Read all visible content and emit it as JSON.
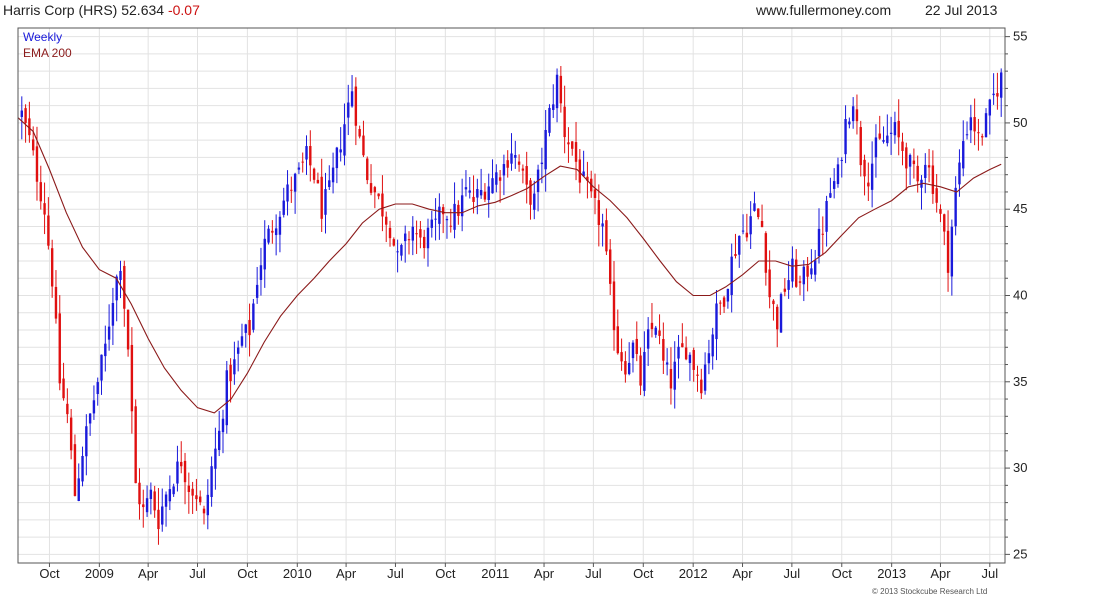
{
  "header": {
    "title": "Harris Corp (HRS) 52.634",
    "change": "-0.07",
    "site": "www.fullermoney.com",
    "date": "22 Jul 2013"
  },
  "footer": {
    "copyright": "© 2013 Stockcube Research Ltd"
  },
  "colors": {
    "up": "#1a1adb",
    "down": "#e01010",
    "ema": "#8b1a1a",
    "grid": "#e2e2e2"
  },
  "chart_data": {
    "type": "candlestick",
    "legend": {
      "placement": "top-left",
      "entries": [
        "Weekly",
        "EMA 200"
      ]
    },
    "grid": true,
    "ylim": [
      24.5,
      55.5
    ],
    "y_ticks": [
      25,
      30,
      35,
      40,
      45,
      50,
      55
    ],
    "x_range": [
      "2008-08-04",
      "2013-07-29"
    ],
    "x_ticks": [
      {
        "date": "2008-10-01",
        "label": "Oct"
      },
      {
        "date": "2009-01-01",
        "label": "2009"
      },
      {
        "date": "2009-04-01",
        "label": "Apr"
      },
      {
        "date": "2009-07-01",
        "label": "Jul"
      },
      {
        "date": "2009-10-01",
        "label": "Oct"
      },
      {
        "date": "2010-01-01",
        "label": "2010"
      },
      {
        "date": "2010-04-01",
        "label": "Apr"
      },
      {
        "date": "2010-07-01",
        "label": "Jul"
      },
      {
        "date": "2010-10-01",
        "label": "Oct"
      },
      {
        "date": "2011-01-01",
        "label": "2011"
      },
      {
        "date": "2011-04-01",
        "label": "Apr"
      },
      {
        "date": "2011-07-01",
        "label": "Jul"
      },
      {
        "date": "2011-10-01",
        "label": "Oct"
      },
      {
        "date": "2012-01-01",
        "label": "2012"
      },
      {
        "date": "2012-04-01",
        "label": "Apr"
      },
      {
        "date": "2012-07-01",
        "label": "Jul"
      },
      {
        "date": "2012-10-01",
        "label": "Oct"
      },
      {
        "date": "2013-01-01",
        "label": "2013"
      },
      {
        "date": "2013-04-01",
        "label": "Apr"
      },
      {
        "date": "2013-07-01",
        "label": "Jul"
      }
    ],
    "series": [
      {
        "name": "Weekly",
        "kind": "weekly-ohlc",
        "close_path": [
          [
            "2008-08-11",
            50.5
          ],
          [
            "2008-08-25",
            49.0
          ],
          [
            "2008-09-08",
            47.0
          ],
          [
            "2008-09-22",
            45.0
          ],
          [
            "2008-10-06",
            41.0
          ],
          [
            "2008-10-20",
            35.0
          ],
          [
            "2008-11-03",
            33.0
          ],
          [
            "2008-11-17",
            28.5
          ],
          [
            "2008-12-01",
            31.0
          ],
          [
            "2008-12-15",
            33.0
          ],
          [
            "2008-12-29",
            35.0
          ],
          [
            "2009-01-12",
            37.0
          ],
          [
            "2009-01-26",
            40.0
          ],
          [
            "2009-02-09",
            42.0
          ],
          [
            "2009-02-23",
            37.0
          ],
          [
            "2009-03-09",
            29.0
          ],
          [
            "2009-03-23",
            27.5
          ],
          [
            "2009-04-06",
            28.5
          ],
          [
            "2009-04-20",
            27.0
          ],
          [
            "2009-05-04",
            28.5
          ],
          [
            "2009-05-18",
            29.5
          ],
          [
            "2009-06-01",
            30.5
          ],
          [
            "2009-06-15",
            29.0
          ],
          [
            "2009-06-29",
            28.5
          ],
          [
            "2009-07-13",
            27.0
          ],
          [
            "2009-07-27",
            30.0
          ],
          [
            "2009-08-10",
            32.0
          ],
          [
            "2009-08-24",
            35.0
          ],
          [
            "2009-09-07",
            36.0
          ],
          [
            "2009-09-21",
            37.5
          ],
          [
            "2009-10-05",
            38.0
          ],
          [
            "2009-10-19",
            41.0
          ],
          [
            "2009-11-02",
            43.0
          ],
          [
            "2009-11-16",
            44.0
          ],
          [
            "2009-11-30",
            45.0
          ],
          [
            "2009-12-14",
            46.0
          ],
          [
            "2010-01-04",
            47.0
          ],
          [
            "2010-01-18",
            48.0
          ],
          [
            "2010-02-01",
            47.0
          ],
          [
            "2010-02-15",
            45.0
          ],
          [
            "2010-03-01",
            46.0
          ],
          [
            "2010-03-15",
            48.0
          ],
          [
            "2010-03-29",
            50.0
          ],
          [
            "2010-04-12",
            52.0
          ],
          [
            "2010-04-26",
            49.0
          ],
          [
            "2010-05-10",
            47.0
          ],
          [
            "2010-05-24",
            46.0
          ],
          [
            "2010-06-07",
            45.0
          ],
          [
            "2010-06-21",
            44.0
          ],
          [
            "2010-07-05",
            42.0
          ],
          [
            "2010-07-19",
            43.0
          ],
          [
            "2010-08-02",
            44.0
          ],
          [
            "2010-08-16",
            43.0
          ],
          [
            "2010-08-30",
            43.5
          ],
          [
            "2010-09-13",
            44.0
          ],
          [
            "2010-09-27",
            45.0
          ],
          [
            "2010-10-11",
            44.5
          ],
          [
            "2010-10-25",
            45.0
          ],
          [
            "2010-11-08",
            46.0
          ],
          [
            "2010-11-22",
            45.5
          ],
          [
            "2010-12-06",
            46.0
          ],
          [
            "2010-12-20",
            46.5
          ],
          [
            "2011-01-03",
            47.0
          ],
          [
            "2011-01-17",
            47.5
          ],
          [
            "2011-01-31",
            48.5
          ],
          [
            "2011-02-14",
            47.5
          ],
          [
            "2011-02-28",
            46.0
          ],
          [
            "2011-03-14",
            45.5
          ],
          [
            "2011-03-28",
            48.0
          ],
          [
            "2011-04-11",
            50.5
          ],
          [
            "2011-04-25",
            52.5
          ],
          [
            "2011-05-09",
            49.5
          ],
          [
            "2011-05-23",
            48.5
          ],
          [
            "2011-06-06",
            47.0
          ],
          [
            "2011-06-20",
            46.0
          ],
          [
            "2011-07-04",
            45.0
          ],
          [
            "2011-07-18",
            44.0
          ],
          [
            "2011-08-01",
            40.0
          ],
          [
            "2011-08-15",
            37.0
          ],
          [
            "2011-08-29",
            36.0
          ],
          [
            "2011-09-12",
            37.0
          ],
          [
            "2011-09-26",
            35.0
          ],
          [
            "2011-10-10",
            37.5
          ],
          [
            "2011-10-24",
            38.5
          ],
          [
            "2011-11-07",
            36.0
          ],
          [
            "2011-11-21",
            35.0
          ],
          [
            "2011-12-05",
            36.5
          ],
          [
            "2011-12-19",
            37.0
          ],
          [
            "2012-01-02",
            36.0
          ],
          [
            "2012-01-16",
            35.0
          ],
          [
            "2012-01-30",
            37.0
          ],
          [
            "2012-02-13",
            39.0
          ],
          [
            "2012-02-27",
            40.0
          ],
          [
            "2012-03-12",
            42.0
          ],
          [
            "2012-03-26",
            43.5
          ],
          [
            "2012-04-09",
            44.0
          ],
          [
            "2012-04-23",
            45.0
          ],
          [
            "2012-05-07",
            44.0
          ],
          [
            "2012-05-21",
            40.0
          ],
          [
            "2012-06-04",
            38.5
          ],
          [
            "2012-06-18",
            40.5
          ],
          [
            "2012-07-02",
            41.5
          ],
          [
            "2012-07-16",
            40.5
          ],
          [
            "2012-07-30",
            41.5
          ],
          [
            "2012-08-13",
            42.5
          ],
          [
            "2012-08-27",
            44.0
          ],
          [
            "2012-09-10",
            46.0
          ],
          [
            "2012-09-24",
            47.0
          ],
          [
            "2012-10-08",
            50.0
          ],
          [
            "2012-10-22",
            51.5
          ],
          [
            "2012-11-05",
            48.0
          ],
          [
            "2012-11-19",
            47.0
          ],
          [
            "2012-12-03",
            48.5
          ],
          [
            "2012-12-17",
            49.0
          ],
          [
            "2013-01-07",
            49.5
          ],
          [
            "2013-01-21",
            48.5
          ],
          [
            "2013-02-04",
            47.5
          ],
          [
            "2013-02-18",
            46.5
          ],
          [
            "2013-03-04",
            48.0
          ],
          [
            "2013-03-18",
            46.5
          ],
          [
            "2013-04-01",
            44.5
          ],
          [
            "2013-04-15",
            42.0
          ],
          [
            "2013-04-29",
            46.0
          ],
          [
            "2013-05-13",
            49.0
          ],
          [
            "2013-05-27",
            50.5
          ],
          [
            "2013-06-10",
            49.0
          ],
          [
            "2013-06-24",
            50.0
          ],
          [
            "2013-07-08",
            51.5
          ],
          [
            "2013-07-22",
            52.634
          ]
        ]
      },
      {
        "name": "EMA 200",
        "kind": "line",
        "points": [
          [
            "2008-08-04",
            50.3
          ],
          [
            "2008-09-01",
            49.5
          ],
          [
            "2008-10-01",
            47.3
          ],
          [
            "2008-11-01",
            44.8
          ],
          [
            "2008-12-01",
            42.8
          ],
          [
            "2009-01-01",
            41.5
          ],
          [
            "2009-02-01",
            41.0
          ],
          [
            "2009-03-01",
            39.5
          ],
          [
            "2009-04-01",
            37.5
          ],
          [
            "2009-05-01",
            35.8
          ],
          [
            "2009-06-01",
            34.5
          ],
          [
            "2009-07-01",
            33.5
          ],
          [
            "2009-08-01",
            33.2
          ],
          [
            "2009-09-01",
            34.0
          ],
          [
            "2009-10-01",
            35.5
          ],
          [
            "2009-11-01",
            37.3
          ],
          [
            "2009-12-01",
            38.8
          ],
          [
            "2010-01-01",
            40.0
          ],
          [
            "2010-02-01",
            41.0
          ],
          [
            "2010-03-01",
            42.0
          ],
          [
            "2010-04-01",
            43.0
          ],
          [
            "2010-05-01",
            44.2
          ],
          [
            "2010-06-01",
            45.0
          ],
          [
            "2010-07-01",
            45.3
          ],
          [
            "2010-08-01",
            45.3
          ],
          [
            "2010-09-01",
            45.0
          ],
          [
            "2010-10-01",
            44.8
          ],
          [
            "2010-11-01",
            44.8
          ],
          [
            "2010-12-01",
            45.2
          ],
          [
            "2011-01-01",
            45.4
          ],
          [
            "2011-02-01",
            45.8
          ],
          [
            "2011-03-01",
            46.2
          ],
          [
            "2011-04-01",
            46.9
          ],
          [
            "2011-05-01",
            47.5
          ],
          [
            "2011-06-01",
            47.3
          ],
          [
            "2011-07-01",
            46.3
          ],
          [
            "2011-08-01",
            45.5
          ],
          [
            "2011-09-01",
            44.5
          ],
          [
            "2011-10-01",
            43.3
          ],
          [
            "2011-11-01",
            42.0
          ],
          [
            "2011-12-01",
            40.8
          ],
          [
            "2012-01-01",
            40.0
          ],
          [
            "2012-02-01",
            40.0
          ],
          [
            "2012-03-01",
            40.5
          ],
          [
            "2012-04-01",
            41.2
          ],
          [
            "2012-05-01",
            42.0
          ],
          [
            "2012-06-01",
            42.0
          ],
          [
            "2012-07-01",
            41.7
          ],
          [
            "2012-08-01",
            41.8
          ],
          [
            "2012-09-01",
            42.5
          ],
          [
            "2012-10-01",
            43.5
          ],
          [
            "2012-11-01",
            44.5
          ],
          [
            "2012-12-01",
            45.0
          ],
          [
            "2013-01-01",
            45.5
          ],
          [
            "2013-02-01",
            46.3
          ],
          [
            "2013-03-01",
            46.5
          ],
          [
            "2013-04-01",
            46.3
          ],
          [
            "2013-05-01",
            46.0
          ],
          [
            "2013-06-01",
            46.8
          ],
          [
            "2013-07-01",
            47.3
          ],
          [
            "2013-07-22",
            47.6
          ]
        ]
      }
    ]
  }
}
